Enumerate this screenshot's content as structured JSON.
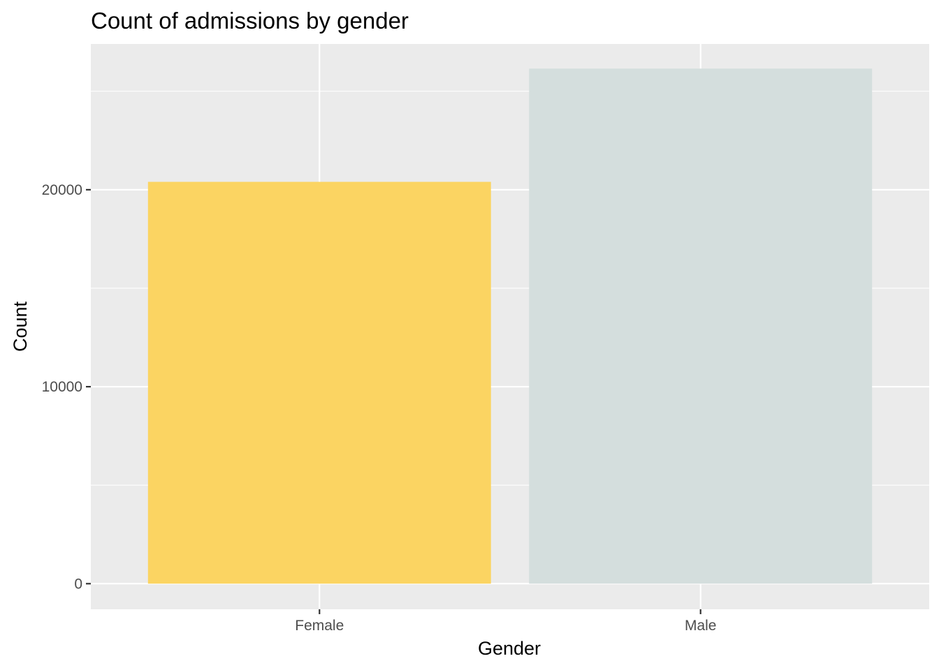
{
  "chart_data": {
    "type": "bar",
    "title": "Count of admissions by gender",
    "xlabel": "Gender",
    "ylabel": "Count",
    "categories": [
      "Female",
      "Male"
    ],
    "values": [
      20400,
      26150
    ],
    "bar_colors": [
      "#FBD462",
      "#D4DEDD"
    ],
    "ylim": [
      -1300,
      27400
    ],
    "y_ticks": [
      0,
      10000,
      20000
    ],
    "y_tick_labels": [
      "0",
      "10000",
      "20000"
    ],
    "y_minor_ticks": [
      5000,
      15000,
      25000
    ],
    "grid": true,
    "legend": "none",
    "panel_background": "#EBEBEB",
    "gridline_color": "#FFFFFF",
    "tick_label_color": "#4D4D4D"
  }
}
